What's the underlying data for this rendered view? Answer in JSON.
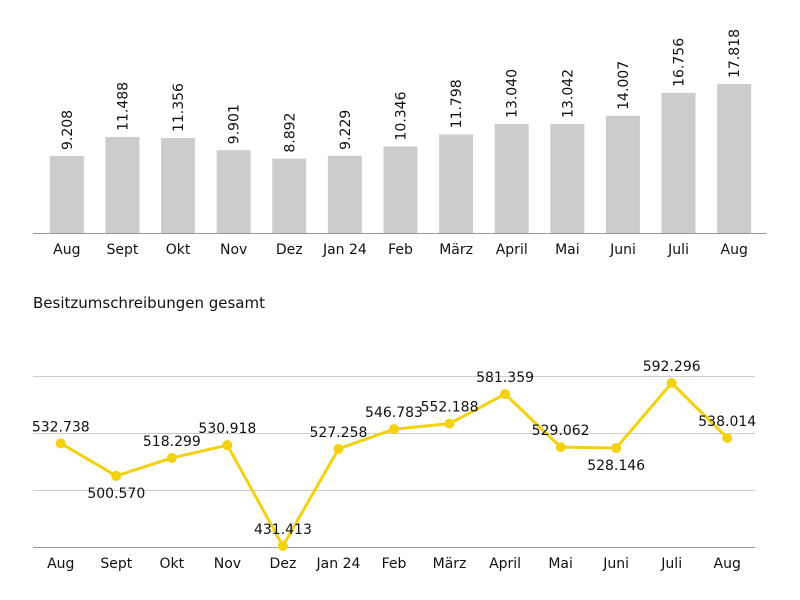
{
  "chart_data": [
    {
      "type": "bar",
      "title": "",
      "categories": [
        "Aug",
        "Sept",
        "Okt",
        "Nov",
        "Dez",
        "Jan 24",
        "Feb",
        "März",
        "April",
        "Mai",
        "Juni",
        "Juli",
        "Aug"
      ],
      "values": [
        9208,
        11488,
        11356,
        9901,
        8892,
        9229,
        10346,
        11798,
        13040,
        13042,
        14007,
        16756,
        17818
      ],
      "labels": [
        "9.208",
        "11.488",
        "11.356",
        "9.901",
        "8.892",
        "9.229",
        "10.346",
        "11.798",
        "13.040",
        "13.042",
        "14.007",
        "16.756",
        "17.818"
      ],
      "ylim": [
        0,
        17818
      ],
      "grid": false,
      "colors": {
        "bar": "#cccccc",
        "axis": "#999999"
      }
    },
    {
      "type": "line",
      "title": "Besitzumschreibungen gesamt",
      "categories": [
        "Aug",
        "Sept",
        "Okt",
        "Nov",
        "Dez",
        "Jan 24",
        "Feb",
        "März",
        "April",
        "Mai",
        "Juni",
        "Juli",
        "Aug"
      ],
      "values": [
        532738,
        500570,
        518299,
        530918,
        431413,
        527258,
        546783,
        552188,
        581359,
        529062,
        528146,
        592296,
        538014
      ],
      "labels": [
        "532.738",
        "500.570",
        "518.299",
        "530.918",
        "431.413",
        "527.258",
        "546.783",
        "552.188",
        "581.359",
        "529.062",
        "528.146",
        "592.296",
        "538.014"
      ],
      "label_positions": [
        "above",
        "below",
        "above",
        "above",
        "above",
        "above",
        "above",
        "above",
        "above",
        "above",
        "below",
        "above",
        "above"
      ],
      "ylim": [
        431413,
        592296
      ],
      "grid": true,
      "colors": {
        "line": "#f2d10f",
        "grid": "#cccccc"
      }
    }
  ]
}
